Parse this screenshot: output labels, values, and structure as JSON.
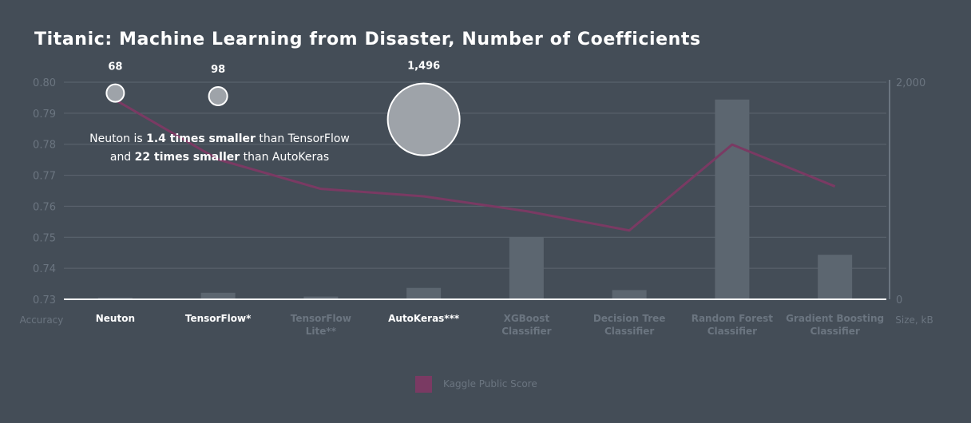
{
  "chart_data": {
    "type": "bar",
    "title": "Titanic: Machine Learning from Disaster, Number of  Coefficients",
    "categories": [
      {
        "lines": [
          "Neuton"
        ],
        "highlight": true
      },
      {
        "lines": [
          "TensorFlow*"
        ],
        "highlight": true
      },
      {
        "lines": [
          "TensorFlow",
          "Lite**"
        ],
        "highlight": false
      },
      {
        "lines": [
          "AutoKeras***"
        ],
        "highlight": true
      },
      {
        "lines": [
          "XGBoost",
          "Classifier"
        ],
        "highlight": false
      },
      {
        "lines": [
          "Decision Tree",
          "Classifier"
        ],
        "highlight": false
      },
      {
        "lines": [
          "Random Forest",
          "Classifier"
        ],
        "highlight": false
      },
      {
        "lines": [
          "Gradient Boosting",
          "Classifier"
        ],
        "highlight": false
      }
    ],
    "y_left": {
      "label": "Accuracy",
      "ylim": [
        0.73,
        0.8
      ],
      "ticks": [
        "0.73",
        "0.74",
        "0.75",
        "0.76",
        "0.77",
        "0.78",
        "0.79",
        "0.80"
      ]
    },
    "y_right": {
      "label": "Size, kB",
      "ylim": [
        0,
        2000
      ],
      "ticks": [
        {
          "value": 0,
          "label": "0"
        },
        {
          "value": 2000,
          "label": "2,000"
        }
      ]
    },
    "bars": {
      "axis": "right",
      "values": [
        15,
        60,
        25,
        105,
        570,
        85,
        1840,
        410
      ],
      "color": "#5c6670"
    },
    "line": {
      "name": "Kaggle Public Score",
      "axis": "left",
      "color": "#7a3a63",
      "values": [
        0.7943,
        0.7751,
        0.7656,
        0.7632,
        0.7584,
        0.7522,
        0.7799,
        0.7664
      ]
    },
    "bubbles": [
      {
        "category_index": 0,
        "value": 68,
        "label": "68",
        "y": 0.7965
      },
      {
        "category_index": 1,
        "value": 98,
        "label": "98",
        "y": 0.7955
      },
      {
        "category_index": 3,
        "value": 1496,
        "label": "1,496",
        "y": 0.788
      }
    ],
    "annotation": {
      "line1": {
        "prefix": "Neuton is ",
        "bold": "1.4 times smaller",
        "suffix": " than TensorFlow"
      },
      "line2": {
        "prefix": "and ",
        "bold": "22 times smaller",
        "suffix": " than AutoKeras"
      }
    },
    "legend": {
      "label": "Kaggle Public Score",
      "color": "#7a3a63",
      "position": "bottom-center"
    },
    "grid": true
  }
}
